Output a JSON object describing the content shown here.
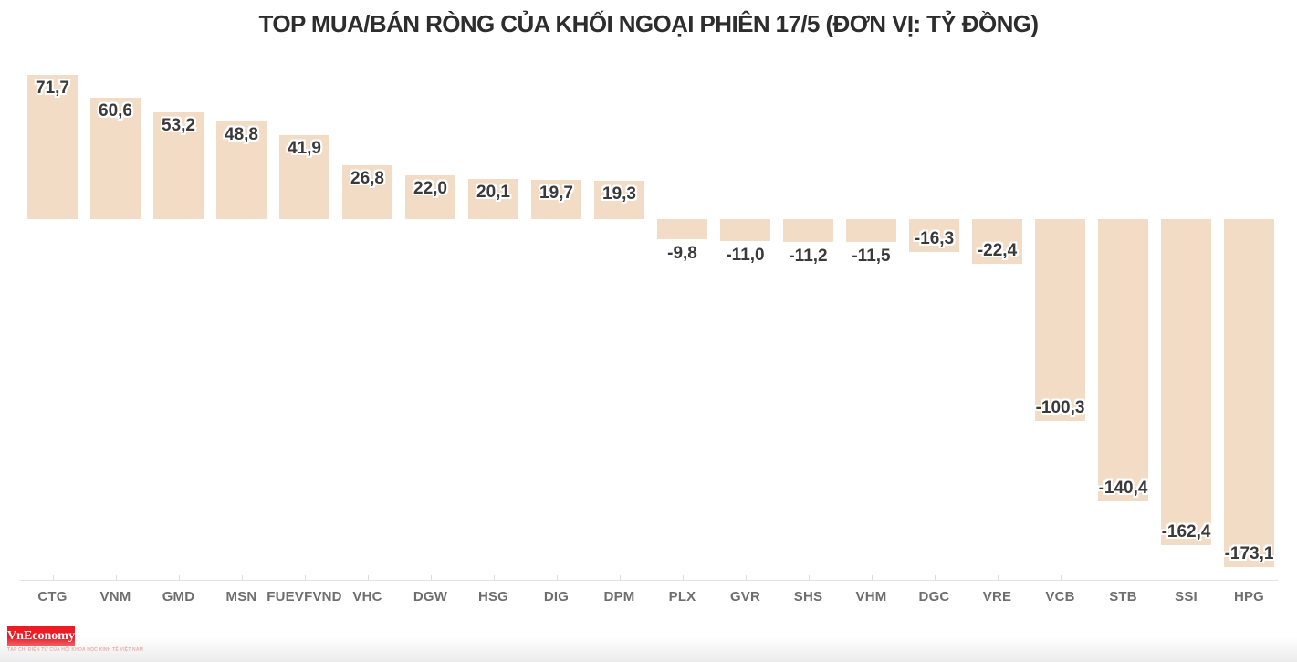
{
  "chart_data": {
    "type": "bar",
    "title": "TOP MUA/BÁN RÒNG CỦA KHỐI NGOẠI PHIÊN 17/5 (ĐƠN VỊ: TỶ ĐỒNG)",
    "categories": [
      "CTG",
      "VNM",
      "GMD",
      "MSN",
      "FUEVFVND",
      "VHC",
      "DGW",
      "HSG",
      "DIG",
      "DPM",
      "PLX",
      "GVR",
      "SHS",
      "VHM",
      "DGC",
      "VRE",
      "VCB",
      "STB",
      "SSI",
      "HPG"
    ],
    "values": [
      71.7,
      60.6,
      53.2,
      48.8,
      41.9,
      26.8,
      22.0,
      20.1,
      19.7,
      19.3,
      -9.8,
      -11.0,
      -11.2,
      -11.5,
      -16.3,
      -22.4,
      -100.3,
      -140.4,
      -162.4,
      -173.1
    ],
    "value_labels": [
      "71,7",
      "60,6",
      "53,2",
      "48,8",
      "41,9",
      "26,8",
      "22,0",
      "20,1",
      "19,7",
      "19,3",
      "-9,8",
      "-11,0",
      "-11,2",
      "-11,5",
      "-16,3",
      "-22,4",
      "-100,3",
      "-140,4",
      "-162,4",
      "-173,1"
    ],
    "xlabel": "",
    "ylabel": "",
    "ylim": [
      -180,
      80
    ],
    "grid": false,
    "legend": false,
    "bar_color": "#f3dcc6",
    "value_label_color": "#3a3a3a",
    "axis_label_color": "#6e6e6e",
    "axis_line_color": "#e4e4e4"
  },
  "footer": {
    "logo_text": "VnEconomy",
    "logo_tagline": "TẠP CHÍ ĐIỆN TỬ CỦA HỘI KHOA HỌC KINH TẾ VIỆT NAM",
    "logo_bg_color": "#ec1c24"
  }
}
